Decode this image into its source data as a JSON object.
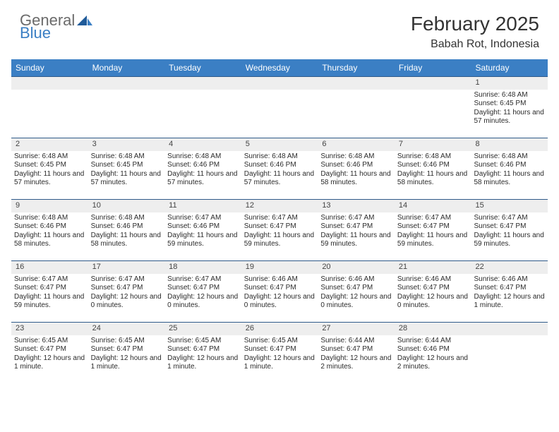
{
  "logo": {
    "text1": "General",
    "text2": "Blue"
  },
  "title": {
    "month": "February 2025",
    "location": "Babah Rot, Indonesia"
  },
  "colors": {
    "header_bg": "#3b7fc4",
    "row_border": "#2f5a8a",
    "daynum_bg": "#eeeeee",
    "text": "#2b2b2b"
  },
  "weekdays": [
    "Sunday",
    "Monday",
    "Tuesday",
    "Wednesday",
    "Thursday",
    "Friday",
    "Saturday"
  ],
  "weeks": [
    [
      {
        "n": "",
        "empty": true
      },
      {
        "n": "",
        "empty": true
      },
      {
        "n": "",
        "empty": true
      },
      {
        "n": "",
        "empty": true
      },
      {
        "n": "",
        "empty": true
      },
      {
        "n": "",
        "empty": true
      },
      {
        "n": "1",
        "sr": "Sunrise: 6:48 AM",
        "ss": "Sunset: 6:45 PM",
        "dl": "Daylight: 11 hours and 57 minutes."
      }
    ],
    [
      {
        "n": "2",
        "sr": "Sunrise: 6:48 AM",
        "ss": "Sunset: 6:45 PM",
        "dl": "Daylight: 11 hours and 57 minutes."
      },
      {
        "n": "3",
        "sr": "Sunrise: 6:48 AM",
        "ss": "Sunset: 6:45 PM",
        "dl": "Daylight: 11 hours and 57 minutes."
      },
      {
        "n": "4",
        "sr": "Sunrise: 6:48 AM",
        "ss": "Sunset: 6:46 PM",
        "dl": "Daylight: 11 hours and 57 minutes."
      },
      {
        "n": "5",
        "sr": "Sunrise: 6:48 AM",
        "ss": "Sunset: 6:46 PM",
        "dl": "Daylight: 11 hours and 57 minutes."
      },
      {
        "n": "6",
        "sr": "Sunrise: 6:48 AM",
        "ss": "Sunset: 6:46 PM",
        "dl": "Daylight: 11 hours and 58 minutes."
      },
      {
        "n": "7",
        "sr": "Sunrise: 6:48 AM",
        "ss": "Sunset: 6:46 PM",
        "dl": "Daylight: 11 hours and 58 minutes."
      },
      {
        "n": "8",
        "sr": "Sunrise: 6:48 AM",
        "ss": "Sunset: 6:46 PM",
        "dl": "Daylight: 11 hours and 58 minutes."
      }
    ],
    [
      {
        "n": "9",
        "sr": "Sunrise: 6:48 AM",
        "ss": "Sunset: 6:46 PM",
        "dl": "Daylight: 11 hours and 58 minutes."
      },
      {
        "n": "10",
        "sr": "Sunrise: 6:48 AM",
        "ss": "Sunset: 6:46 PM",
        "dl": "Daylight: 11 hours and 58 minutes."
      },
      {
        "n": "11",
        "sr": "Sunrise: 6:47 AM",
        "ss": "Sunset: 6:46 PM",
        "dl": "Daylight: 11 hours and 59 minutes."
      },
      {
        "n": "12",
        "sr": "Sunrise: 6:47 AM",
        "ss": "Sunset: 6:47 PM",
        "dl": "Daylight: 11 hours and 59 minutes."
      },
      {
        "n": "13",
        "sr": "Sunrise: 6:47 AM",
        "ss": "Sunset: 6:47 PM",
        "dl": "Daylight: 11 hours and 59 minutes."
      },
      {
        "n": "14",
        "sr": "Sunrise: 6:47 AM",
        "ss": "Sunset: 6:47 PM",
        "dl": "Daylight: 11 hours and 59 minutes."
      },
      {
        "n": "15",
        "sr": "Sunrise: 6:47 AM",
        "ss": "Sunset: 6:47 PM",
        "dl": "Daylight: 11 hours and 59 minutes."
      }
    ],
    [
      {
        "n": "16",
        "sr": "Sunrise: 6:47 AM",
        "ss": "Sunset: 6:47 PM",
        "dl": "Daylight: 11 hours and 59 minutes."
      },
      {
        "n": "17",
        "sr": "Sunrise: 6:47 AM",
        "ss": "Sunset: 6:47 PM",
        "dl": "Daylight: 12 hours and 0 minutes."
      },
      {
        "n": "18",
        "sr": "Sunrise: 6:47 AM",
        "ss": "Sunset: 6:47 PM",
        "dl": "Daylight: 12 hours and 0 minutes."
      },
      {
        "n": "19",
        "sr": "Sunrise: 6:46 AM",
        "ss": "Sunset: 6:47 PM",
        "dl": "Daylight: 12 hours and 0 minutes."
      },
      {
        "n": "20",
        "sr": "Sunrise: 6:46 AM",
        "ss": "Sunset: 6:47 PM",
        "dl": "Daylight: 12 hours and 0 minutes."
      },
      {
        "n": "21",
        "sr": "Sunrise: 6:46 AM",
        "ss": "Sunset: 6:47 PM",
        "dl": "Daylight: 12 hours and 0 minutes."
      },
      {
        "n": "22",
        "sr": "Sunrise: 6:46 AM",
        "ss": "Sunset: 6:47 PM",
        "dl": "Daylight: 12 hours and 1 minute."
      }
    ],
    [
      {
        "n": "23",
        "sr": "Sunrise: 6:45 AM",
        "ss": "Sunset: 6:47 PM",
        "dl": "Daylight: 12 hours and 1 minute."
      },
      {
        "n": "24",
        "sr": "Sunrise: 6:45 AM",
        "ss": "Sunset: 6:47 PM",
        "dl": "Daylight: 12 hours and 1 minute."
      },
      {
        "n": "25",
        "sr": "Sunrise: 6:45 AM",
        "ss": "Sunset: 6:47 PM",
        "dl": "Daylight: 12 hours and 1 minute."
      },
      {
        "n": "26",
        "sr": "Sunrise: 6:45 AM",
        "ss": "Sunset: 6:47 PM",
        "dl": "Daylight: 12 hours and 1 minute."
      },
      {
        "n": "27",
        "sr": "Sunrise: 6:44 AM",
        "ss": "Sunset: 6:47 PM",
        "dl": "Daylight: 12 hours and 2 minutes."
      },
      {
        "n": "28",
        "sr": "Sunrise: 6:44 AM",
        "ss": "Sunset: 6:46 PM",
        "dl": "Daylight: 12 hours and 2 minutes."
      },
      {
        "n": "",
        "empty": true
      }
    ]
  ]
}
